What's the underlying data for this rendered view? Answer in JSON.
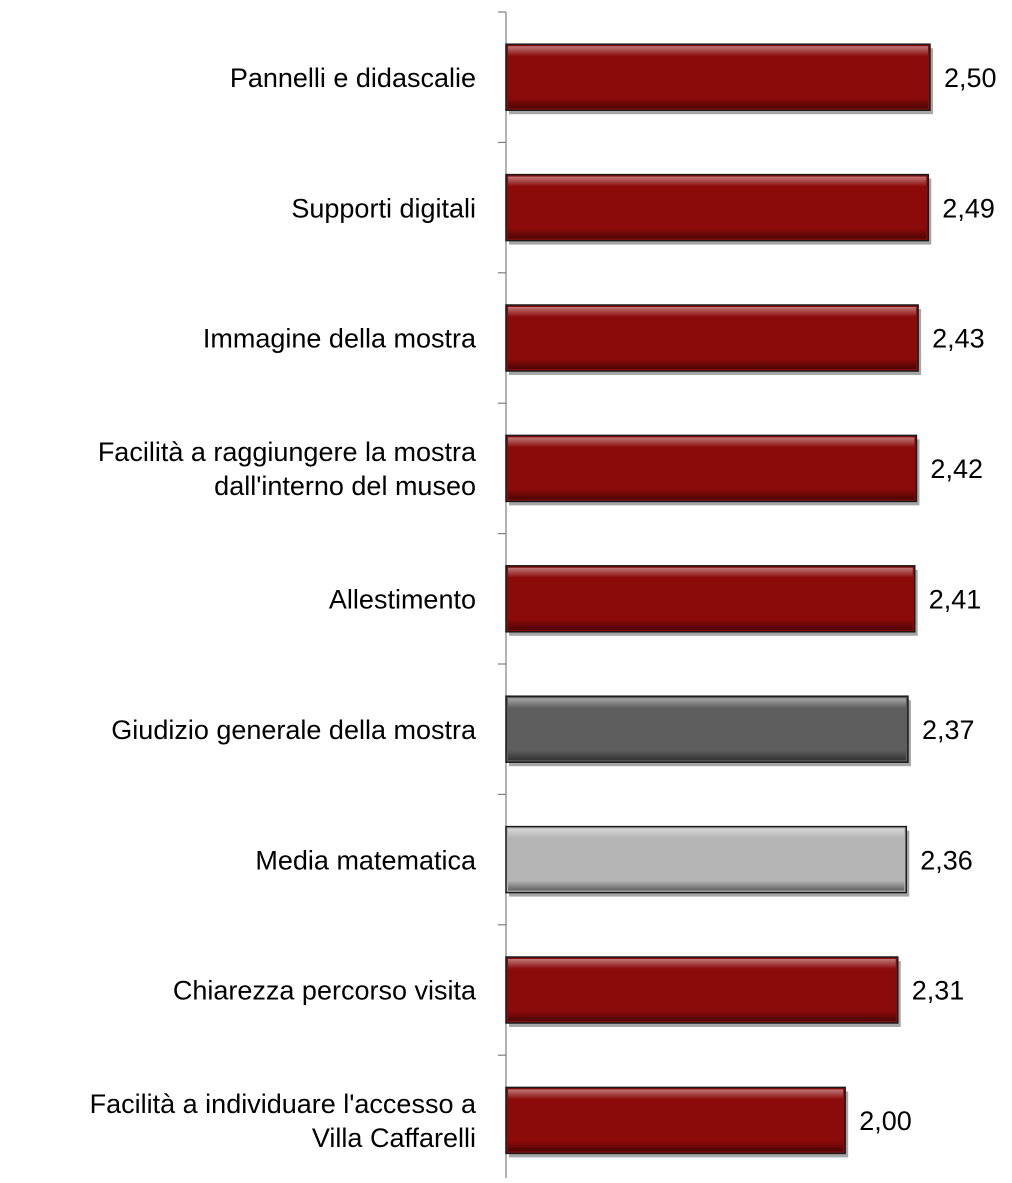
{
  "chart_data": {
    "type": "bar",
    "orientation": "horizontal",
    "title": "",
    "xlabel": "",
    "ylabel": "",
    "grid": false,
    "legend": "none",
    "xlim": [
      0,
      2.5
    ],
    "categories": [
      "Pannelli e didascalie",
      "Supporti digitali",
      "Immagine della mostra",
      "Facilità a raggiungere la mostra dall'interno del museo",
      "Allestimento",
      "Giudizio generale della mostra",
      "Media matematica",
      "Chiarezza percorso visita",
      "Facilità a individuare l'accesso a Villa Caffarelli"
    ],
    "category_lines": [
      [
        "Pannelli e didascalie"
      ],
      [
        "Supporti digitali"
      ],
      [
        "Immagine della mostra"
      ],
      [
        "Facilità a raggiungere la mostra",
        "dall'interno del museo"
      ],
      [
        "Allestimento"
      ],
      [
        "Giudizio generale della mostra"
      ],
      [
        "Media matematica"
      ],
      [
        "Chiarezza percorso visita"
      ],
      [
        "Facilità a individuare l'accesso a",
        "Villa Caffarelli"
      ]
    ],
    "values": [
      2.5,
      2.49,
      2.43,
      2.42,
      2.41,
      2.37,
      2.36,
      2.31,
      2.0
    ],
    "value_labels": [
      "2,50",
      "2,49",
      "2,43",
      "2,42",
      "2,41",
      "2,37",
      "2,36",
      "2,31",
      "2,00"
    ],
    "bar_colors": [
      "#8b0a0a",
      "#8b0a0a",
      "#8b0a0a",
      "#8b0a0a",
      "#8b0a0a",
      "#5e5e5e",
      "#b4b4b4",
      "#8b0a0a",
      "#8b0a0a"
    ]
  }
}
